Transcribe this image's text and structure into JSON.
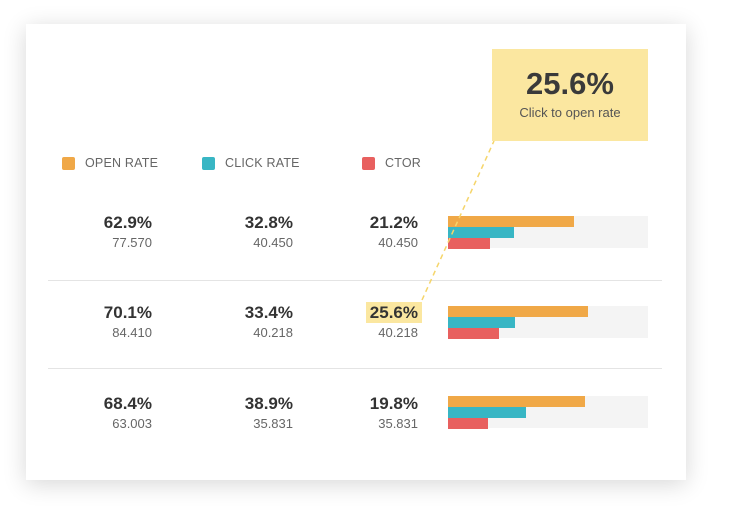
{
  "colors": {
    "open_rate": "#f0a847",
    "click_rate": "#38b6c4",
    "ctor": "#e8605f",
    "highlight": "#fbe7a0"
  },
  "legend": [
    {
      "label": "OPEN RATE",
      "color": "#f0a847"
    },
    {
      "label": "CLICK RATE",
      "color": "#38b6c4"
    },
    {
      "label": "CTOR",
      "color": "#e8605f"
    }
  ],
  "callout": {
    "value": "25.6%",
    "caption": "Click to open rate"
  },
  "rows": [
    {
      "open": {
        "pct": "62.9%",
        "count": "77.570"
      },
      "click": {
        "pct": "32.8%",
        "count": "40.450"
      },
      "ctor": {
        "pct": "21.2%",
        "count": "40.450"
      },
      "bars": {
        "open": 62.9,
        "click": 32.8,
        "ctor": 21.2
      }
    },
    {
      "open": {
        "pct": "70.1%",
        "count": "84.410"
      },
      "click": {
        "pct": "33.4%",
        "count": "40.218"
      },
      "ctor": {
        "pct": "25.6%",
        "count": "40.218"
      },
      "bars": {
        "open": 70.1,
        "click": 33.4,
        "ctor": 25.6
      }
    },
    {
      "open": {
        "pct": "68.4%",
        "count": "63.003"
      },
      "click": {
        "pct": "38.9%",
        "count": "35.831"
      },
      "ctor": {
        "pct": "19.8%",
        "count": "35.831"
      },
      "bars": {
        "open": 68.4,
        "click": 38.9,
        "ctor": 19.8
      }
    }
  ]
}
